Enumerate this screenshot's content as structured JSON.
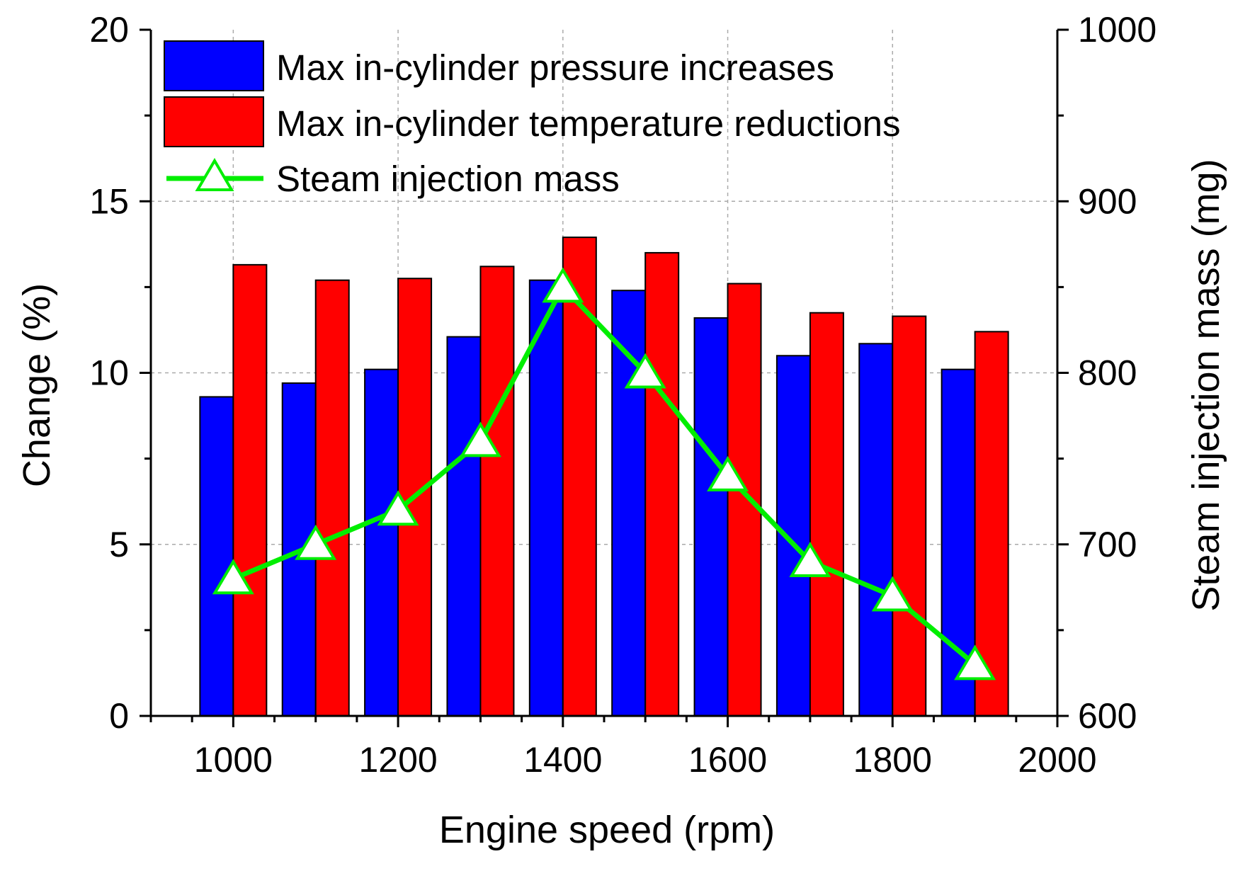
{
  "chart_data": {
    "type": "bar",
    "xlabel": "Engine speed (rpm)",
    "ylabel": "Change (%)",
    "y2label": "Steam injection mass (mg)",
    "x": [
      1000,
      1100,
      1200,
      1300,
      1400,
      1500,
      1600,
      1700,
      1800,
      1900
    ],
    "xlim": [
      900,
      2000
    ],
    "ylim": [
      0,
      20
    ],
    "y2lim": [
      600,
      1000
    ],
    "xticks": [
      "1000",
      "1200",
      "1400",
      "1600",
      "1800",
      "2000"
    ],
    "yticks": [
      "0",
      "5",
      "10",
      "15",
      "20"
    ],
    "y2ticks": [
      "600",
      "700",
      "800",
      "900",
      "1000"
    ],
    "grid": true,
    "legend_position": "top-left",
    "series": [
      {
        "name": "Max in-cylinder pressure increases",
        "axis": "left",
        "kind": "bar",
        "color": "#0000ff",
        "values": [
          9.3,
          9.7,
          10.1,
          11.05,
          12.7,
          12.4,
          11.6,
          10.5,
          10.85,
          10.1
        ]
      },
      {
        "name": "Max in-cylinder temperature reductions",
        "axis": "left",
        "kind": "bar",
        "color": "#ff0000",
        "values": [
          13.15,
          12.7,
          12.75,
          13.1,
          13.95,
          13.5,
          12.6,
          11.75,
          11.65,
          11.2
        ]
      },
      {
        "name": "Steam injection mass",
        "axis": "right",
        "kind": "line",
        "marker": "triangle",
        "color": "#00ee00",
        "values": [
          680,
          700,
          720,
          760,
          850,
          800,
          740,
          690,
          670,
          630
        ]
      }
    ]
  }
}
